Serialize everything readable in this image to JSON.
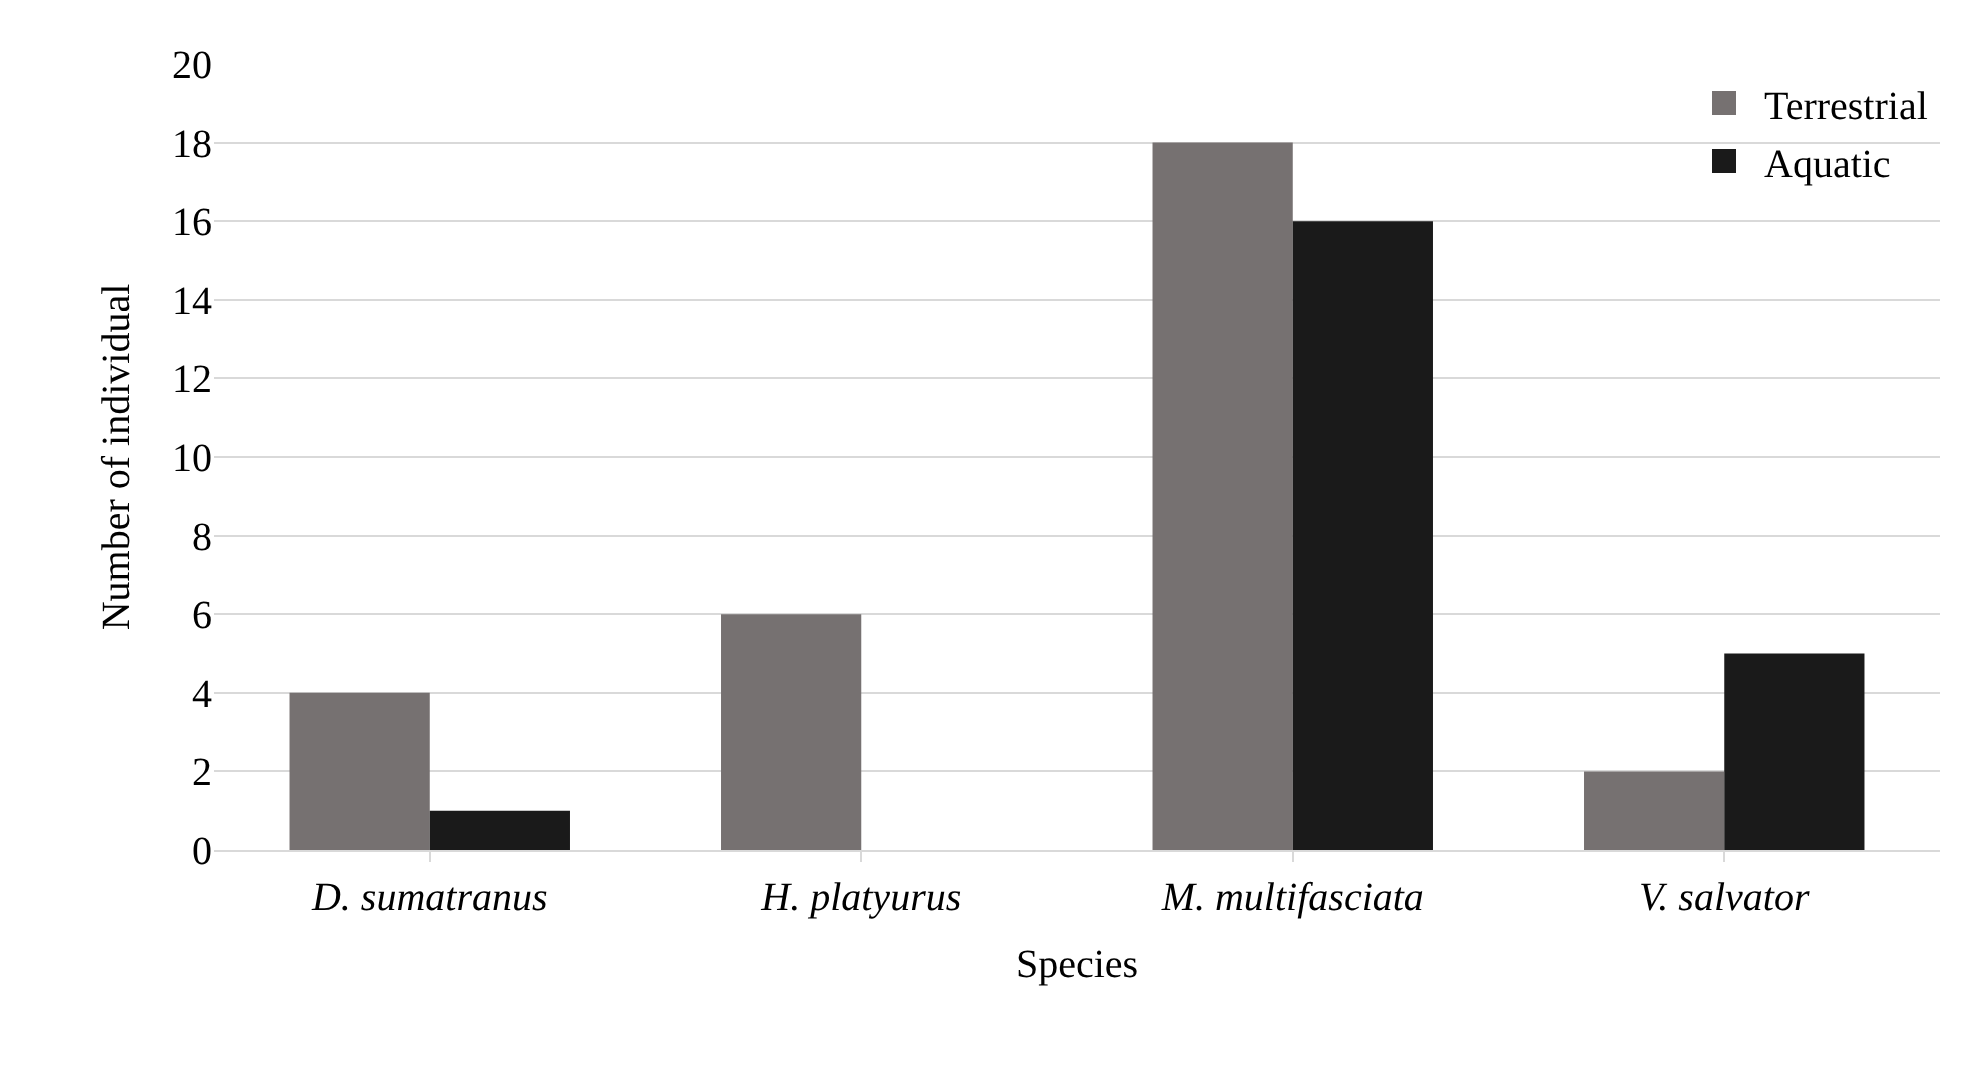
{
  "chart_data": {
    "type": "bar",
    "xlabel": "Species",
    "ylabel": "Number of individual",
    "categories": [
      "D. sumatranus",
      "H. platyurus",
      "M. multifasciata",
      "V. salvator"
    ],
    "series": [
      {
        "name": "Terrestrial",
        "color": "#767171",
        "values": [
          4,
          6,
          18,
          2
        ]
      },
      {
        "name": "Aquatic",
        "color": "#1a1a1a",
        "values": [
          1,
          0,
          16,
          5
        ]
      }
    ],
    "ylim": [
      0,
      20
    ],
    "yticks": [
      0,
      2,
      4,
      6,
      8,
      10,
      12,
      14,
      16,
      18,
      20
    ],
    "grid": "y",
    "legend": "top right"
  }
}
